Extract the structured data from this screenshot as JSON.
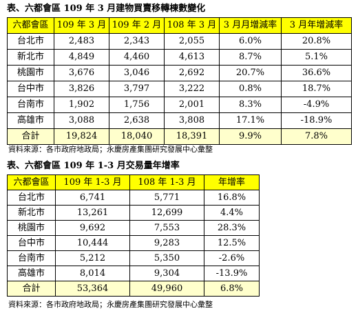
{
  "table1": {
    "caption": "表、六都會區 109 年 3 月建物買賣移轉棟數變化",
    "headers": [
      "六都會區",
      "109 年 3 月",
      "109 年 2 月",
      "108 年 3 月",
      "3 月月增減率",
      "3 月年增減率"
    ],
    "rows": [
      [
        "台北市",
        "2,483",
        "2,343",
        "2,055",
        "6.0%",
        "20.8%"
      ],
      [
        "新北市",
        "4,849",
        "4,460",
        "4,613",
        "8.7%",
        "5.1%"
      ],
      [
        "桃園市",
        "3,676",
        "3,046",
        "2,692",
        "20.7%",
        "36.6%"
      ],
      [
        "台中市",
        "3,826",
        "3,797",
        "3,222",
        "0.8%",
        "18.7%"
      ],
      [
        "台南市",
        "1,902",
        "1,756",
        "2,001",
        "8.3%",
        "-4.9%"
      ],
      [
        "高雄市",
        "3,088",
        "2,638",
        "3,808",
        "17.1%",
        "-18.9%"
      ]
    ],
    "total": [
      "合計",
      "19,824",
      "18,040",
      "18,391",
      "9.9%",
      "7.8%"
    ],
    "source": "資料來源：各市政府地政局；永慶房產集團研究發展中心彙整"
  },
  "table2": {
    "caption": "表、六都會區 109 年 1-3 月交易量年增率",
    "headers": [
      "六都會區",
      "109 年 1-3 月",
      "108 年 1-3 月",
      "年增率"
    ],
    "rows": [
      [
        "台北市",
        "6,741",
        "5,771",
        "16.8%"
      ],
      [
        "新北市",
        "13,261",
        "12,699",
        "4.4%"
      ],
      [
        "桃園市",
        "9,692",
        "7,553",
        "28.3%"
      ],
      [
        "台中市",
        "10,444",
        "9,283",
        "12.5%"
      ],
      [
        "台南市",
        "5,212",
        "5,350",
        "-2.6%"
      ],
      [
        "高雄市",
        "8,014",
        "9,304",
        "-13.9%"
      ]
    ],
    "total": [
      "合計",
      "53,364",
      "49,960",
      "6.8%"
    ],
    "source": "資料來源：各市政府地政局；永慶房產集團研究發展中心彙整"
  }
}
